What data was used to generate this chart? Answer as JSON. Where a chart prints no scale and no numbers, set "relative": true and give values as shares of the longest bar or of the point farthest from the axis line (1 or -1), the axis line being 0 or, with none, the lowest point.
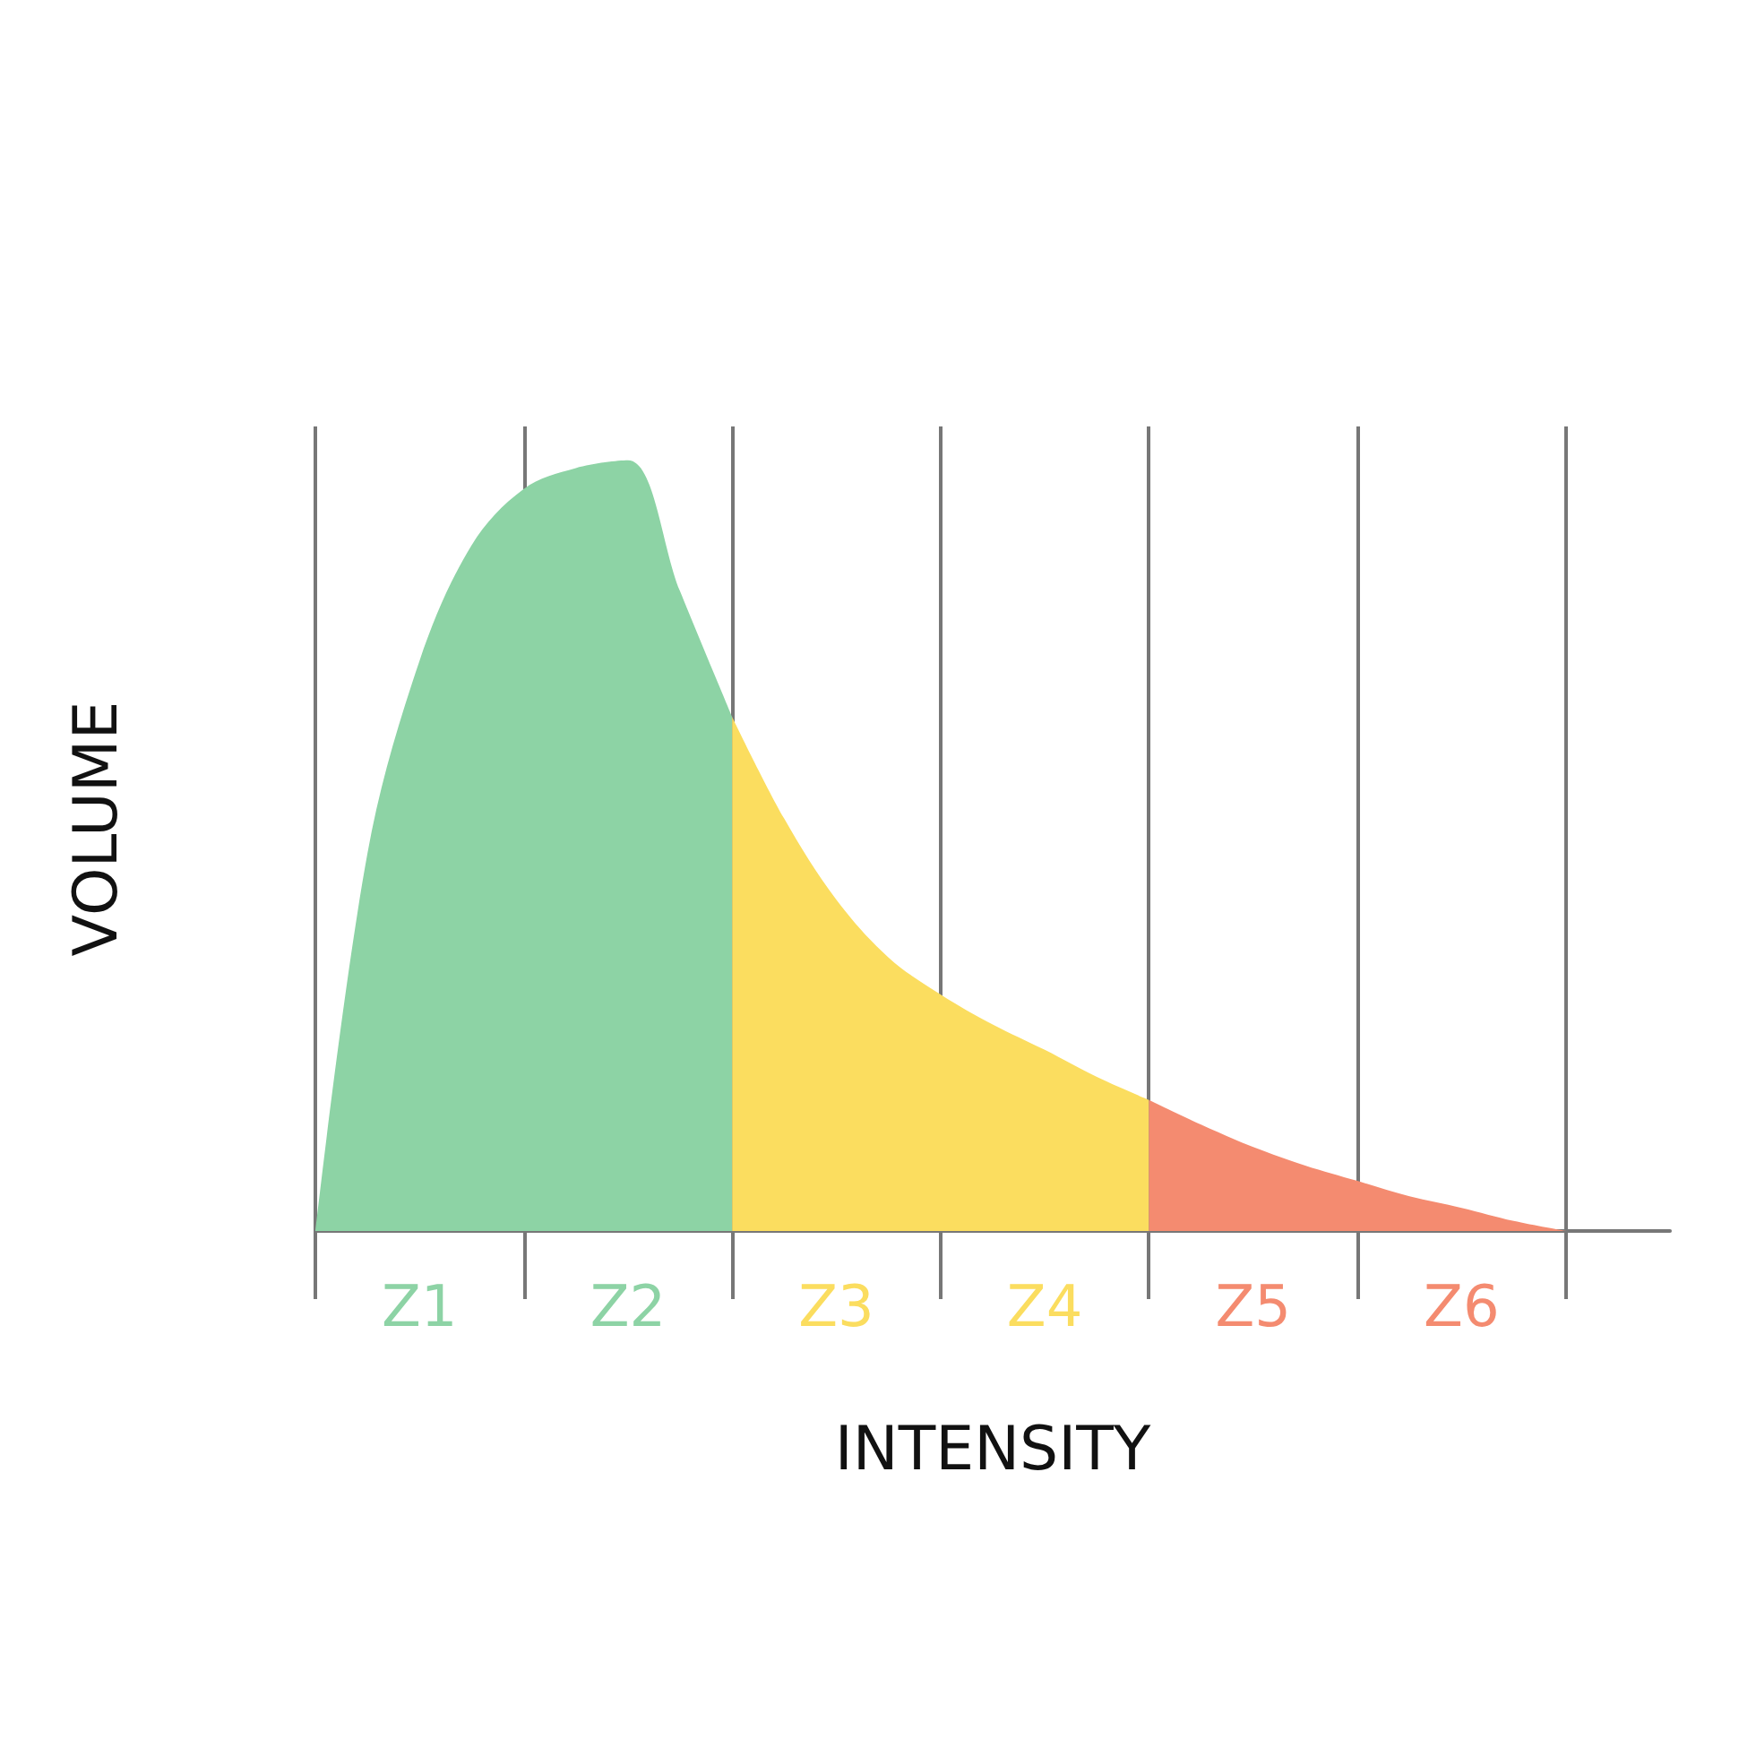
{
  "chart_data": {
    "type": "area",
    "relative": true,
    "xlabel": "INTENSITY",
    "ylabel": "VOLUME",
    "grid": "x",
    "categories": [
      null,
      null,
      "Z1",
      null,
      null,
      null,
      "Z2",
      null,
      null,
      null,
      "Z3",
      null,
      null,
      null,
      "Z4",
      null,
      null,
      null,
      "Z5",
      null,
      null,
      null,
      "Z6",
      null,
      null,
      null,
      null
    ],
    "series": [
      {
        "color": "#8dd3a5",
        "values": [
          0,
          0.49,
          0.74,
          0.89,
          0.963,
          0.99,
          1,
          0.83,
          0.667,
          null,
          null,
          null,
          null,
          null,
          null,
          null,
          null,
          null,
          null,
          null,
          null,
          null,
          null,
          null,
          null,
          null,
          null
        ]
      },
      {
        "color": "#fbdd5f",
        "values": [
          null,
          null,
          null,
          null,
          null,
          null,
          null,
          null,
          0.667,
          0.535,
          0.43,
          0.355,
          0.307,
          0.268,
          0.235,
          0.2,
          0.17,
          null,
          null,
          null,
          null,
          null,
          null,
          null,
          null,
          null,
          null
        ]
      },
      {
        "color": "#f48b70",
        "values": [
          null,
          null,
          null,
          null,
          null,
          null,
          null,
          null,
          null,
          null,
          null,
          null,
          null,
          null,
          null,
          null,
          0.17,
          0.138,
          0.109,
          0.085,
          0.065,
          0.045,
          0.03,
          0.013,
          0,
          null,
          null
        ]
      }
    ]
  }
}
